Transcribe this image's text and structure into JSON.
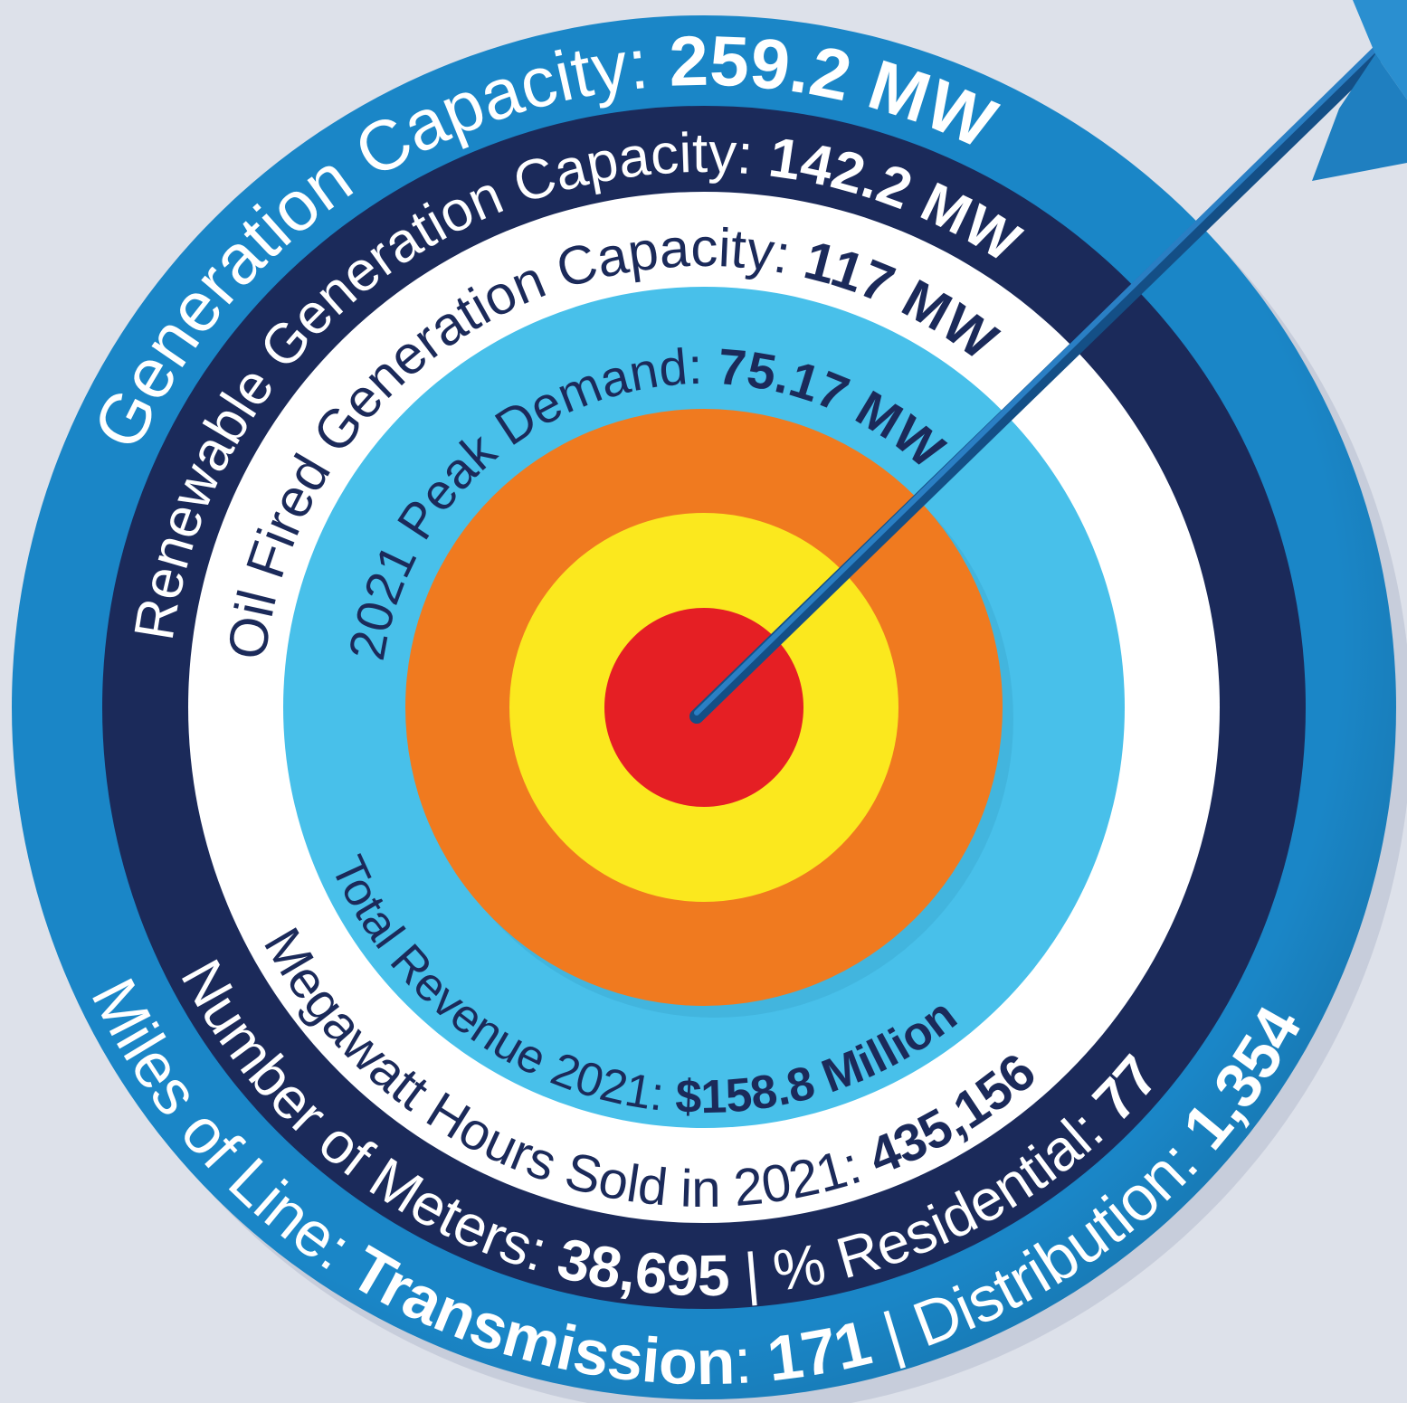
{
  "top_rings": [
    {
      "parts": [
        {
          "text": "Generation Capacity: "
        },
        {
          "text": "259.2 MW",
          "strong": true
        }
      ]
    },
    {
      "parts": [
        {
          "text": "Renewable Generation Capacity: "
        },
        {
          "text": "142.2 MW",
          "strong": true
        }
      ]
    },
    {
      "parts": [
        {
          "text": "Oil Fired Generation Capacity: "
        },
        {
          "text": "117 MW",
          "strong": true
        }
      ]
    },
    {
      "parts": [
        {
          "text": "2021 Peak Demand: "
        },
        {
          "text": "75.17 MW",
          "strong": true
        }
      ]
    }
  ],
  "bottom_rings": [
    {
      "parts": [
        {
          "text": "Miles of Line: "
        },
        {
          "text": "Transmission",
          "strong": true
        },
        {
          "text": ": "
        },
        {
          "text": "171",
          "strong": true
        },
        {
          "text": " | Distribution: "
        },
        {
          "text": "1,354",
          "strong": true
        }
      ]
    },
    {
      "parts": [
        {
          "text": "Number of Meters: "
        },
        {
          "text": "38,695",
          "strong": true
        },
        {
          "text": " | % Residential: "
        },
        {
          "text": "77",
          "strong": true
        }
      ]
    },
    {
      "parts": [
        {
          "text": "Megawatt Hours Sold in 2021: "
        },
        {
          "text": "435,156",
          "strong": true
        }
      ]
    },
    {
      "parts": [
        {
          "text": "Total Revenue 2021: "
        },
        {
          "text": "$158.8 Million",
          "strong": true
        }
      ]
    }
  ]
}
